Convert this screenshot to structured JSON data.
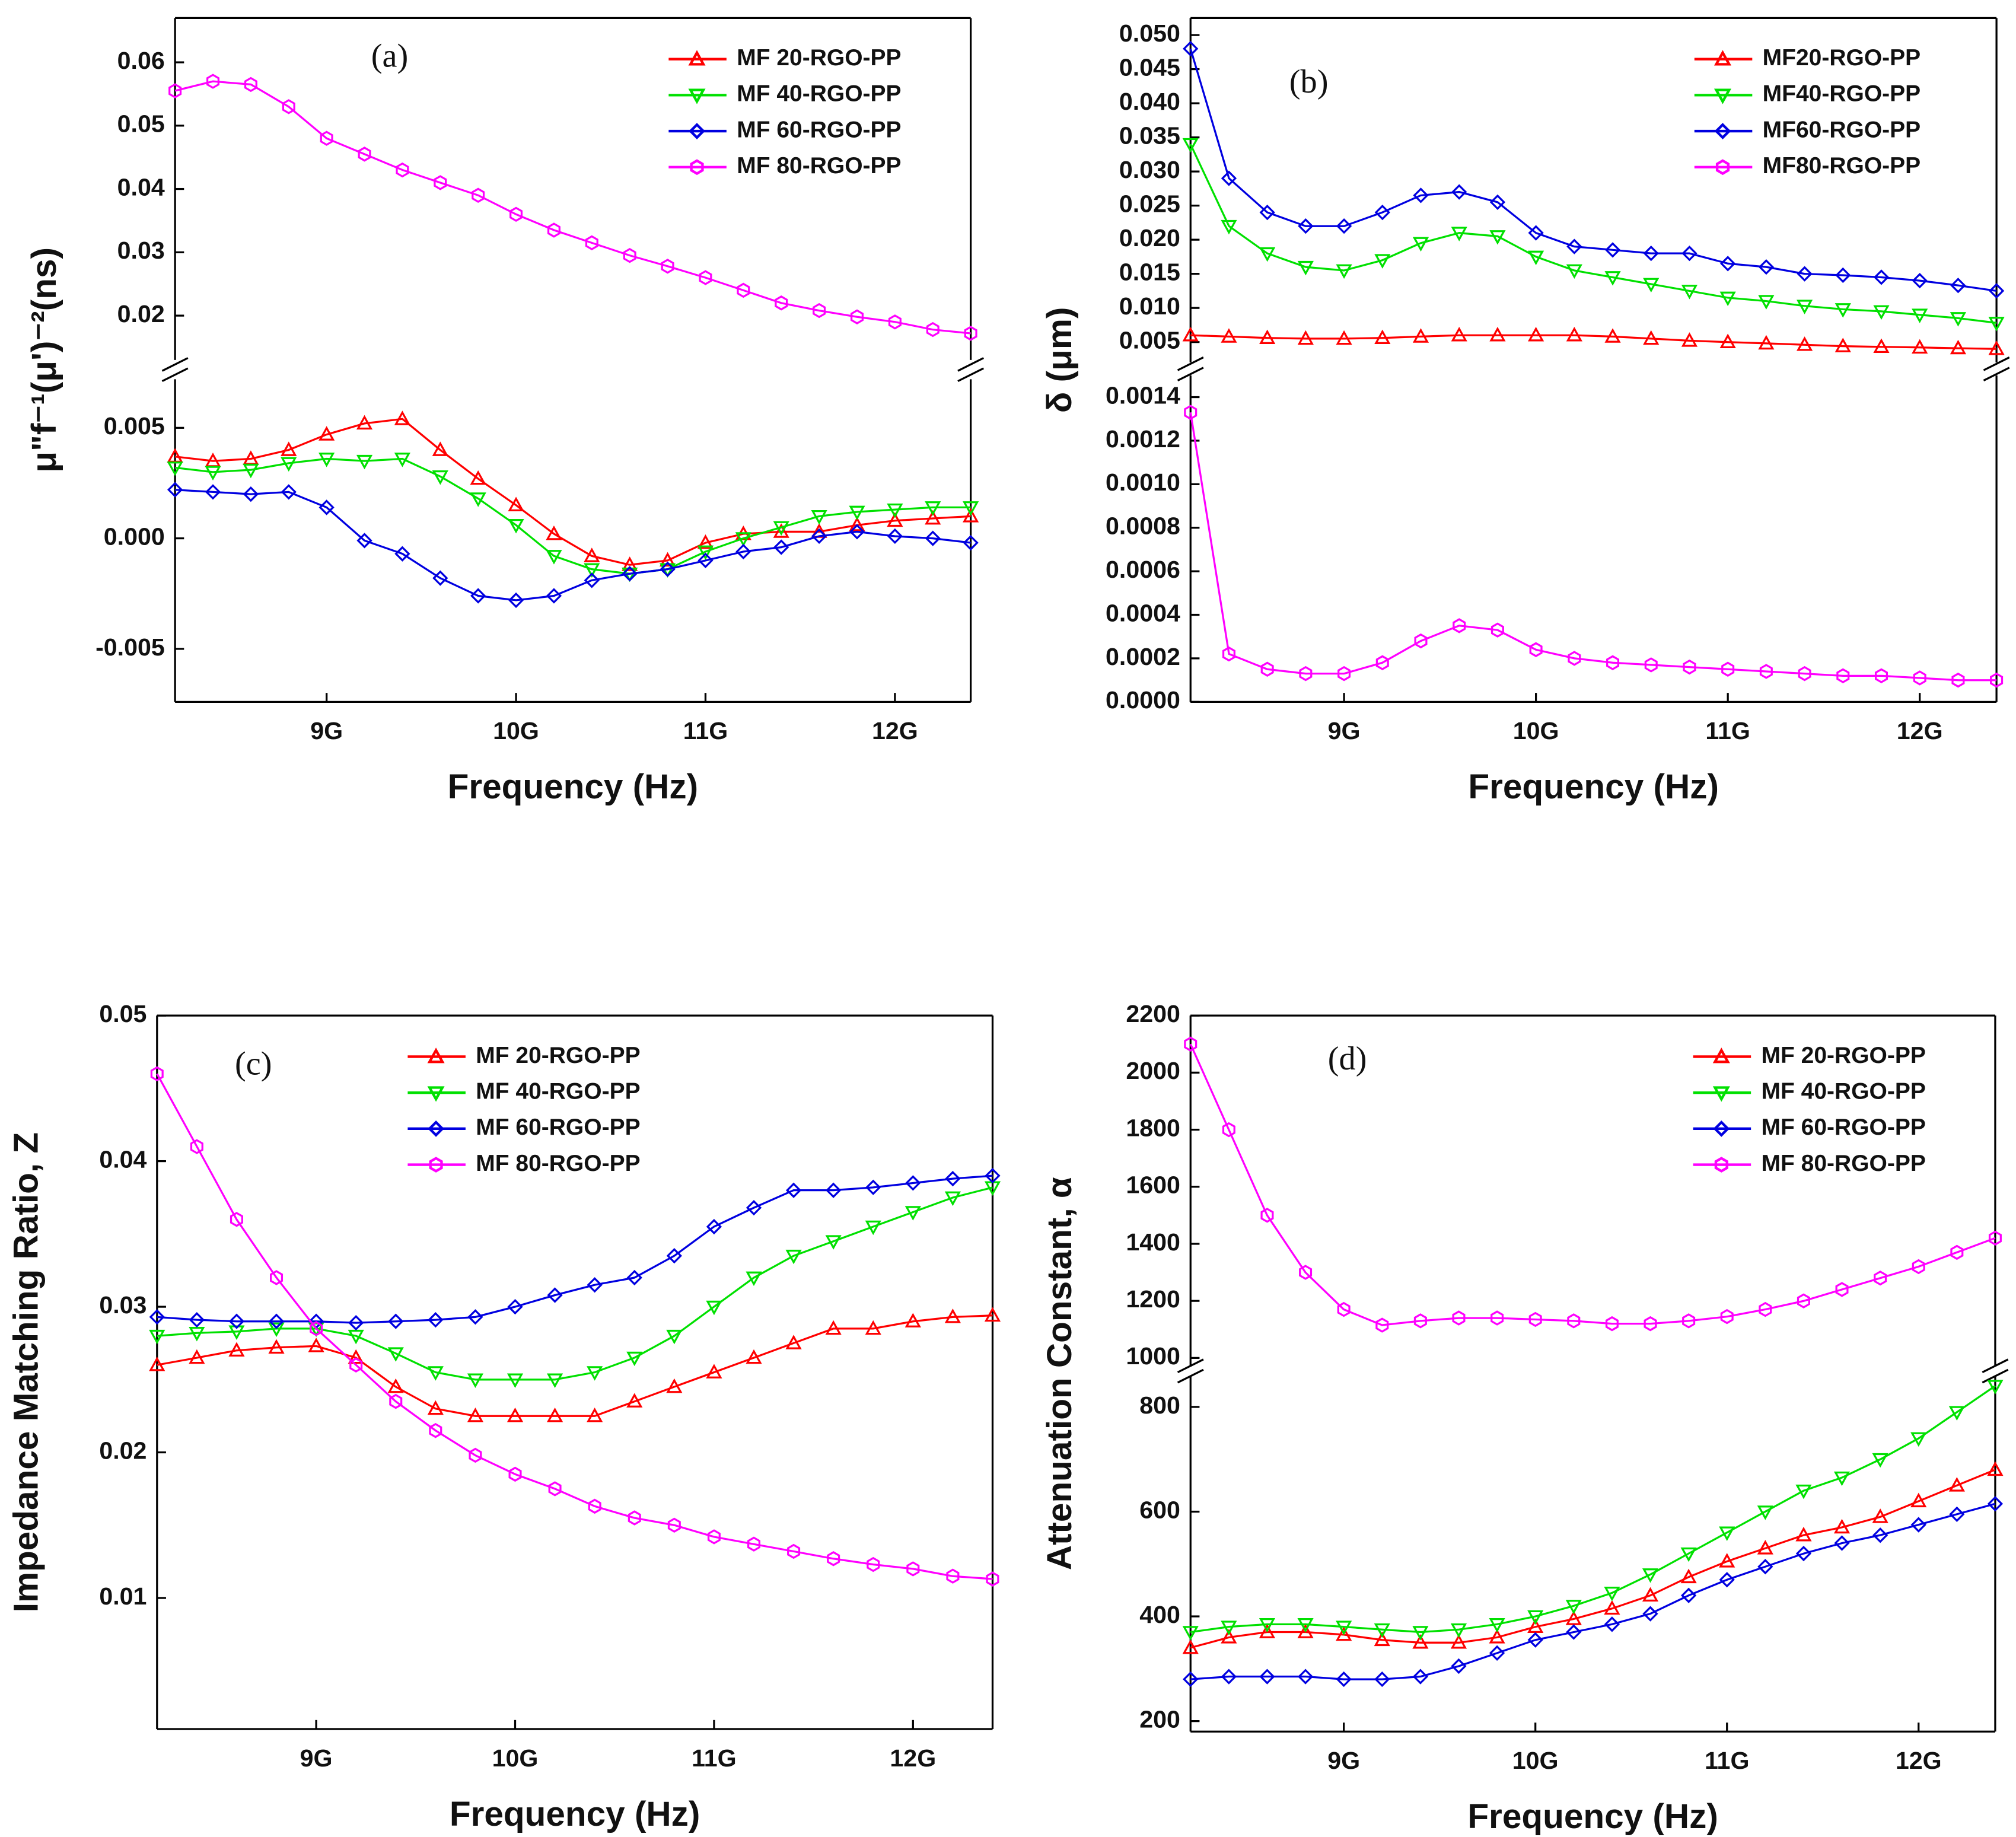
{
  "chart_data": [
    {
      "type": "line",
      "annotation": "(a)",
      "x_label": "Frequency (Hz)",
      "y_label": "μ\"f⁻¹(μ')⁻²(ns)",
      "legend": "upper right",
      "xlim": [
        8200000000,
        12400000000
      ],
      "xticks": [
        {
          "value": 9000000000,
          "label": "9G"
        },
        {
          "value": 10000000000,
          "label": "10G"
        },
        {
          "value": 11000000000,
          "label": "11G"
        },
        {
          "value": 12000000000,
          "label": "12G"
        }
      ],
      "y_segments": [
        {
          "ylim": [
            0.013,
            0.067
          ],
          "yticks": [
            0.02,
            0.03,
            0.04,
            0.05,
            0.06
          ]
        },
        {
          "ylim": [
            -0.0074,
            0.0072
          ],
          "yticks": [
            -0.005,
            {
              "value": 0,
              "label": "0.000"
            },
            0.005
          ]
        }
      ],
      "x": [
        8200000000,
        8400000000,
        8600000000,
        8800000000,
        9000000000,
        9200000000,
        9400000000,
        9600000000,
        9800000000,
        10000000000,
        10200000000,
        10400000000,
        10600000000,
        10800000000,
        11000000000,
        11200000000,
        11400000000,
        11600000000,
        11800000000,
        12000000000,
        12200000000,
        12400000000
      ],
      "series": [
        {
          "name": "MF 20-RGO-PP",
          "color": "#ff0000",
          "marker": "triangle-up",
          "values": [
            0.0037,
            0.0035,
            0.0036,
            0.004,
            0.0047,
            0.0052,
            0.0054,
            0.004,
            0.0027,
            0.0015,
            0.0002,
            -0.0008,
            -0.0012,
            -0.001,
            -0.0002,
            0.0002,
            0.0003,
            0.0003,
            0.0006,
            0.0008,
            0.0009,
            0.001
          ]
        },
        {
          "name": "MF 40-RGO-PP",
          "color": "#00e000",
          "marker": "triangle-down",
          "values": [
            0.0032,
            0.003,
            0.0031,
            0.0034,
            0.0036,
            0.0035,
            0.0036,
            0.0028,
            0.0018,
            0.0006,
            -0.0008,
            -0.0014,
            -0.0016,
            -0.0014,
            -0.0006,
            0,
            0.0005,
            0.001,
            0.0012,
            0.0013,
            0.0014,
            0.0014
          ]
        },
        {
          "name": "MF 60-RGO-PP",
          "color": "#0000e0",
          "marker": "diamond",
          "values": [
            0.0022,
            0.0021,
            0.002,
            0.0021,
            0.0014,
            -0.0001,
            -0.0007,
            -0.0018,
            -0.0026,
            -0.0028,
            -0.0026,
            -0.0019,
            -0.0016,
            -0.0014,
            -0.001,
            -0.0006,
            -0.0004,
            0.0001,
            0.0003,
            0.0001,
            0,
            -0.0002
          ]
        },
        {
          "name": "MF 80-RGO-PP",
          "color": "#ff00ff",
          "marker": "hexagon",
          "values": [
            0.0555,
            0.057,
            0.0565,
            0.053,
            0.048,
            0.0455,
            0.043,
            0.041,
            0.039,
            0.036,
            0.0335,
            0.0315,
            0.0295,
            0.0278,
            0.026,
            0.024,
            0.022,
            0.0208,
            0.0198,
            0.019,
            0.0178,
            0.0172
          ]
        }
      ]
    },
    {
      "type": "line",
      "annotation": "(b)",
      "x_label": "Frequency (Hz)",
      "y_label": "δ (μm)",
      "legend": "upper right",
      "xlim": [
        8200000000,
        12400000000
      ],
      "xticks": [
        {
          "value": 9000000000,
          "label": "9G"
        },
        {
          "value": 10000000000,
          "label": "10G"
        },
        {
          "value": 11000000000,
          "label": "11G"
        },
        {
          "value": 12000000000,
          "label": "12G"
        }
      ],
      "y_segments": [
        {
          "ylim": [
            0.002,
            0.0525
          ],
          "yticks": [
            0.005,
            {
              "value": 0.01,
              "label": "0.010"
            },
            0.015,
            {
              "value": 0.02,
              "label": "0.020"
            },
            0.025,
            {
              "value": 0.03,
              "label": "0.030"
            },
            0.035,
            {
              "value": 0.04,
              "label": "0.040"
            },
            0.045,
            {
              "value": 0.05,
              "label": "0.050"
            }
          ]
        },
        {
          "ylim": [
            0,
            0.0015
          ],
          "yticks": [
            {
              "value": 0,
              "label": "0.0000"
            },
            0.0002,
            0.0004,
            0.0006,
            0.0008,
            {
              "value": 0.001,
              "label": "0.0010"
            },
            0.0012,
            0.0014
          ]
        }
      ],
      "x": [
        8200000000,
        8400000000,
        8600000000,
        8800000000,
        9000000000,
        9200000000,
        9400000000,
        9600000000,
        9800000000,
        10000000000,
        10200000000,
        10400000000,
        10600000000,
        10800000000,
        11000000000,
        11200000000,
        11400000000,
        11600000000,
        11800000000,
        12000000000,
        12200000000,
        12400000000
      ],
      "series": [
        {
          "name": "MF20-RGO-PP",
          "color": "#ff0000",
          "marker": "triangle-up",
          "values": [
            0.006,
            0.0058,
            0.0056,
            0.0055,
            0.0055,
            0.0056,
            0.0058,
            0.006,
            0.006,
            0.006,
            0.006,
            0.0058,
            0.0055,
            0.0052,
            0.005,
            0.0048,
            0.0046,
            0.0044,
            0.0043,
            0.0042,
            0.0041,
            0.004
          ]
        },
        {
          "name": "MF40-RGO-PP",
          "color": "#00e000",
          "marker": "triangle-down",
          "values": [
            0.034,
            0.022,
            0.018,
            0.016,
            0.0155,
            0.017,
            0.0195,
            0.021,
            0.0205,
            0.0175,
            0.0155,
            0.0145,
            0.0135,
            0.0125,
            0.0115,
            0.011,
            0.0103,
            0.0098,
            0.0095,
            0.009,
            0.0085,
            0.0078
          ]
        },
        {
          "name": "MF60-RGO-PP",
          "color": "#0000e0",
          "marker": "diamond",
          "values": [
            0.048,
            0.029,
            0.024,
            0.022,
            0.022,
            0.024,
            0.0265,
            0.027,
            0.0255,
            0.021,
            0.019,
            0.0185,
            0.018,
            0.018,
            0.0165,
            0.016,
            0.015,
            0.0148,
            0.0145,
            0.014,
            0.0133,
            0.0125
          ]
        },
        {
          "name": "MF80-RGO-PP",
          "color": "#ff00ff",
          "marker": "hexagon",
          "values": [
            0.00133,
            0.00022,
            0.00015,
            0.00013,
            0.00013,
            0.00018,
            0.00028,
            0.00035,
            0.00033,
            0.00024,
            0.0002,
            0.00018,
            0.00017,
            0.00016,
            0.00015,
            0.00014,
            0.00013,
            0.00012,
            0.00012,
            0.00011,
            0.0001,
            0.0001
          ]
        }
      ]
    },
    {
      "type": "line",
      "annotation": "(c)",
      "x_label": "Frequency (Hz)",
      "y_label": "Impedance Matching Ratio, Z",
      "legend": "upper center",
      "xlim": [
        8200000000,
        12400000000
      ],
      "xticks": [
        {
          "value": 9000000000,
          "label": "9G"
        },
        {
          "value": 10000000000,
          "label": "10G"
        },
        {
          "value": 11000000000,
          "label": "11G"
        },
        {
          "value": 12000000000,
          "label": "12G"
        }
      ],
      "ylim": [
        0.001,
        0.05
      ],
      "yticks": [
        0.01,
        0.02,
        0.03,
        0.04,
        0.05
      ],
      "x": [
        8200000000,
        8400000000,
        8600000000,
        8800000000,
        9000000000,
        9200000000,
        9400000000,
        9600000000,
        9800000000,
        10000000000,
        10200000000,
        10400000000,
        10600000000,
        10800000000,
        11000000000,
        11200000000,
        11400000000,
        11600000000,
        11800000000,
        12000000000,
        12200000000,
        12400000000
      ],
      "series": [
        {
          "name": "MF 20-RGO-PP",
          "color": "#ff0000",
          "marker": "triangle-up",
          "values": [
            0.026,
            0.0265,
            0.027,
            0.0272,
            0.0273,
            0.0265,
            0.0245,
            0.023,
            0.0225,
            0.0225,
            0.0225,
            0.0225,
            0.0235,
            0.0245,
            0.0255,
            0.0265,
            0.0275,
            0.0285,
            0.0285,
            0.029,
            0.0293,
            0.0294
          ]
        },
        {
          "name": "MF 40-RGO-PP",
          "color": "#00e000",
          "marker": "triangle-down",
          "values": [
            0.028,
            0.0282,
            0.0283,
            0.0285,
            0.0285,
            0.028,
            0.0268,
            0.0255,
            0.025,
            0.025,
            0.025,
            0.0255,
            0.0265,
            0.028,
            0.03,
            0.032,
            0.0335,
            0.0345,
            0.0355,
            0.0365,
            0.0375,
            0.0382
          ]
        },
        {
          "name": "MF 60-RGO-PP",
          "color": "#0000e0",
          "marker": "diamond",
          "values": [
            0.0293,
            0.0291,
            0.029,
            0.029,
            0.029,
            0.0289,
            0.029,
            0.0291,
            0.0293,
            0.03,
            0.0308,
            0.0315,
            0.032,
            0.0335,
            0.0355,
            0.0368,
            0.038,
            0.038,
            0.0382,
            0.0385,
            0.0388,
            0.039
          ]
        },
        {
          "name": "MF 80-RGO-PP",
          "color": "#ff00ff",
          "marker": "hexagon",
          "values": [
            0.046,
            0.041,
            0.036,
            0.032,
            0.0285,
            0.026,
            0.0235,
            0.0215,
            0.0198,
            0.0185,
            0.0175,
            0.0163,
            0.0155,
            0.015,
            0.0142,
            0.0137,
            0.0132,
            0.0127,
            0.0123,
            0.012,
            0.0115,
            0.0113
          ]
        }
      ]
    },
    {
      "type": "line",
      "annotation": "(d)",
      "x_label": "Frequency (Hz)",
      "y_label": "Attenuation Constant, α",
      "legend": "upper right",
      "xlim": [
        8200000000,
        12400000000
      ],
      "xticks": [
        {
          "value": 9000000000,
          "label": "9G"
        },
        {
          "value": 10000000000,
          "label": "10G"
        },
        {
          "value": 11000000000,
          "label": "11G"
        },
        {
          "value": 12000000000,
          "label": "12G"
        }
      ],
      "y_segments": [
        {
          "ylim": [
            970,
            2200
          ],
          "yticks": [
            1000,
            1200,
            1400,
            1600,
            1800,
            2000,
            2200
          ]
        },
        {
          "ylim": [
            180,
            860
          ],
          "yticks": [
            200,
            400,
            600,
            800
          ]
        }
      ],
      "x": [
        8200000000,
        8400000000,
        8600000000,
        8800000000,
        9000000000,
        9200000000,
        9400000000,
        9600000000,
        9800000000,
        10000000000,
        10200000000,
        10400000000,
        10600000000,
        10800000000,
        11000000000,
        11200000000,
        11400000000,
        11600000000,
        11800000000,
        12000000000,
        12200000000,
        12400000000
      ],
      "series": [
        {
          "name": "MF 20-RGO-PP",
          "color": "#ff0000",
          "marker": "triangle-up",
          "values": [
            340,
            360,
            370,
            370,
            365,
            355,
            350,
            350,
            360,
            380,
            395,
            415,
            440,
            475,
            505,
            530,
            555,
            570,
            590,
            620,
            650,
            680
          ]
        },
        {
          "name": "MF 40-RGO-PP",
          "color": "#00e000",
          "marker": "triangle-down",
          "values": [
            370,
            380,
            385,
            385,
            380,
            375,
            370,
            375,
            385,
            400,
            420,
            445,
            480,
            520,
            560,
            600,
            640,
            665,
            700,
            740,
            790,
            840
          ]
        },
        {
          "name": "MF 60-RGO-PP",
          "color": "#0000e0",
          "marker": "diamond",
          "values": [
            280,
            285,
            285,
            285,
            280,
            280,
            285,
            305,
            330,
            355,
            370,
            385,
            405,
            440,
            470,
            495,
            520,
            540,
            555,
            575,
            595,
            615
          ]
        },
        {
          "name": "MF 80-RGO-PP",
          "color": "#ff00ff",
          "marker": "hexagon",
          "values": [
            2100,
            1800,
            1500,
            1300,
            1170,
            1115,
            1130,
            1140,
            1140,
            1135,
            1130,
            1120,
            1120,
            1130,
            1145,
            1170,
            1200,
            1240,
            1280,
            1320,
            1370,
            1420
          ]
        }
      ]
    }
  ]
}
